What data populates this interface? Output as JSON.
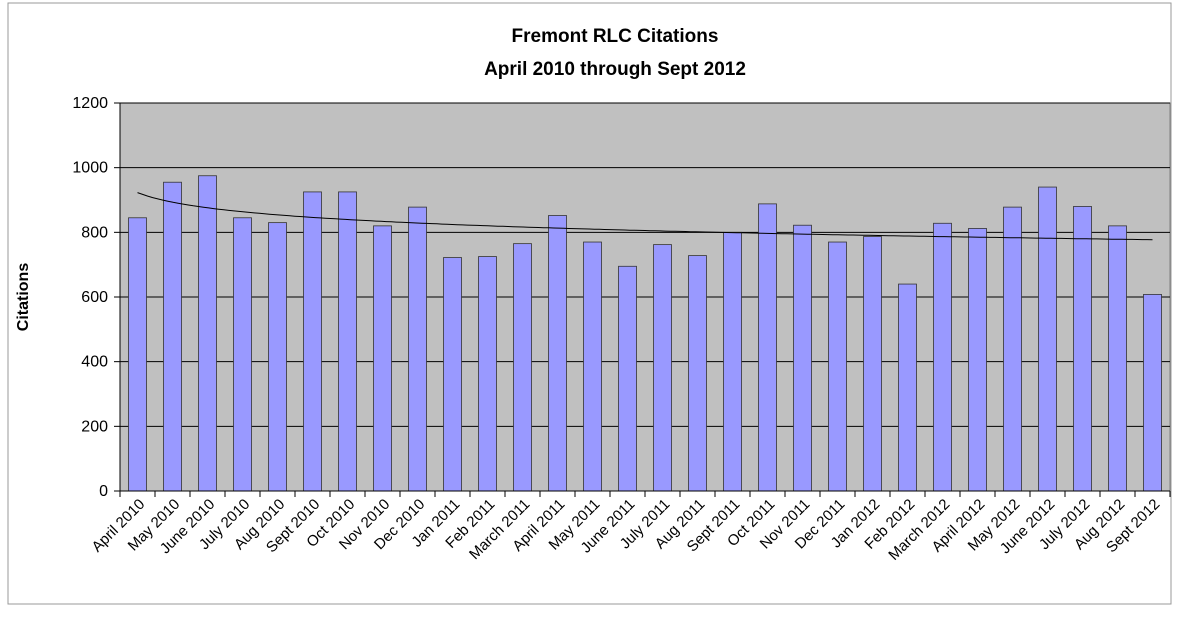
{
  "chart_data": {
    "type": "bar",
    "title": "Fremont RLC Citations",
    "subtitle": "April 2010 through Sept 2012",
    "y_label": "Citations",
    "categories": [
      "April 2010",
      "May 2010",
      "June  2010",
      "July 2010",
      "Aug 2010",
      "Sept 2010",
      "Oct 2010",
      "Nov 2010",
      "Dec 2010",
      "Jan 2011",
      "Feb 2011",
      "March 2011",
      "April 2011",
      "May 2011",
      "June 2011",
      "July 2011",
      "Aug 2011",
      "Sept 2011",
      "Oct 2011",
      "Nov 2011",
      "Dec 2011",
      "Jan 2012",
      "Feb 2012",
      "March 2012",
      "April 2012",
      "May 2012",
      "June 2012",
      "July 2012",
      "Aug 2012",
      "Sept 2012"
    ],
    "values": [
      845,
      955,
      975,
      845,
      830,
      925,
      925,
      820,
      878,
      722,
      725,
      765,
      852,
      770,
      695,
      762,
      728,
      800,
      888,
      822,
      770,
      787,
      640,
      828,
      812,
      878,
      940,
      880,
      820,
      608
    ],
    "color": "#9999ff",
    "ylim": [
      0,
      1200
    ],
    "yticks": [
      0,
      200,
      400,
      600,
      800,
      1000,
      1200
    ],
    "grid": true,
    "trendline": "logarithmic"
  }
}
